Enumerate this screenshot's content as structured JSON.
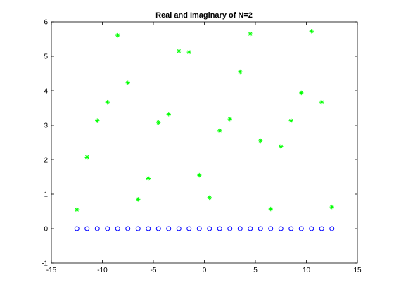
{
  "chart_data": {
    "type": "scatter",
    "title": "Real and Imaginary of N=2",
    "xlabel": "",
    "ylabel": "",
    "xlim": [
      -15,
      15
    ],
    "ylim": [
      -1,
      6
    ],
    "xticks": [
      -15,
      -10,
      -5,
      0,
      5,
      10,
      15
    ],
    "yticks": [
      -1,
      0,
      1,
      2,
      3,
      4,
      5,
      6
    ],
    "x_tick_labels": [
      "-15",
      "-10",
      "-5",
      "0",
      "5",
      "10",
      "15"
    ],
    "y_tick_labels": [
      "-1",
      "0",
      "1",
      "2",
      "3",
      "4",
      "5",
      "6"
    ],
    "grid": false,
    "legend": "none",
    "series": [
      {
        "marker": "asterisk",
        "color": "#00ff00",
        "x": [
          -12.5,
          -11.5,
          -10.5,
          -9.5,
          -8.5,
          -7.5,
          -6.5,
          -5.5,
          -4.5,
          -3.5,
          -2.5,
          -1.5,
          -0.5,
          0.5,
          1.5,
          2.5,
          3.5,
          4.5,
          5.5,
          6.5,
          7.5,
          8.5,
          9.5,
          10.5,
          11.5,
          12.5
        ],
        "y": [
          0.55,
          2.07,
          3.13,
          3.67,
          5.61,
          4.23,
          0.85,
          1.46,
          3.08,
          3.32,
          5.15,
          5.12,
          1.55,
          0.9,
          2.84,
          3.18,
          4.55,
          5.65,
          2.55,
          0.57,
          2.38,
          3.13,
          3.94,
          5.73,
          3.67,
          0.63
        ]
      },
      {
        "marker": "circle",
        "color": "#0000ff",
        "x": [
          -12.5,
          -11.5,
          -10.5,
          -9.5,
          -8.5,
          -7.5,
          -6.5,
          -5.5,
          -4.5,
          -3.5,
          -2.5,
          -1.5,
          -0.5,
          0.5,
          1.5,
          2.5,
          3.5,
          4.5,
          5.5,
          6.5,
          7.5,
          8.5,
          9.5,
          10.5,
          11.5,
          12.5
        ],
        "y": [
          0,
          0,
          0,
          0,
          0,
          0,
          0,
          0,
          0,
          0,
          0,
          0,
          0,
          0,
          0,
          0,
          0,
          0,
          0,
          0,
          0,
          0,
          0,
          0,
          0,
          0
        ]
      }
    ]
  }
}
